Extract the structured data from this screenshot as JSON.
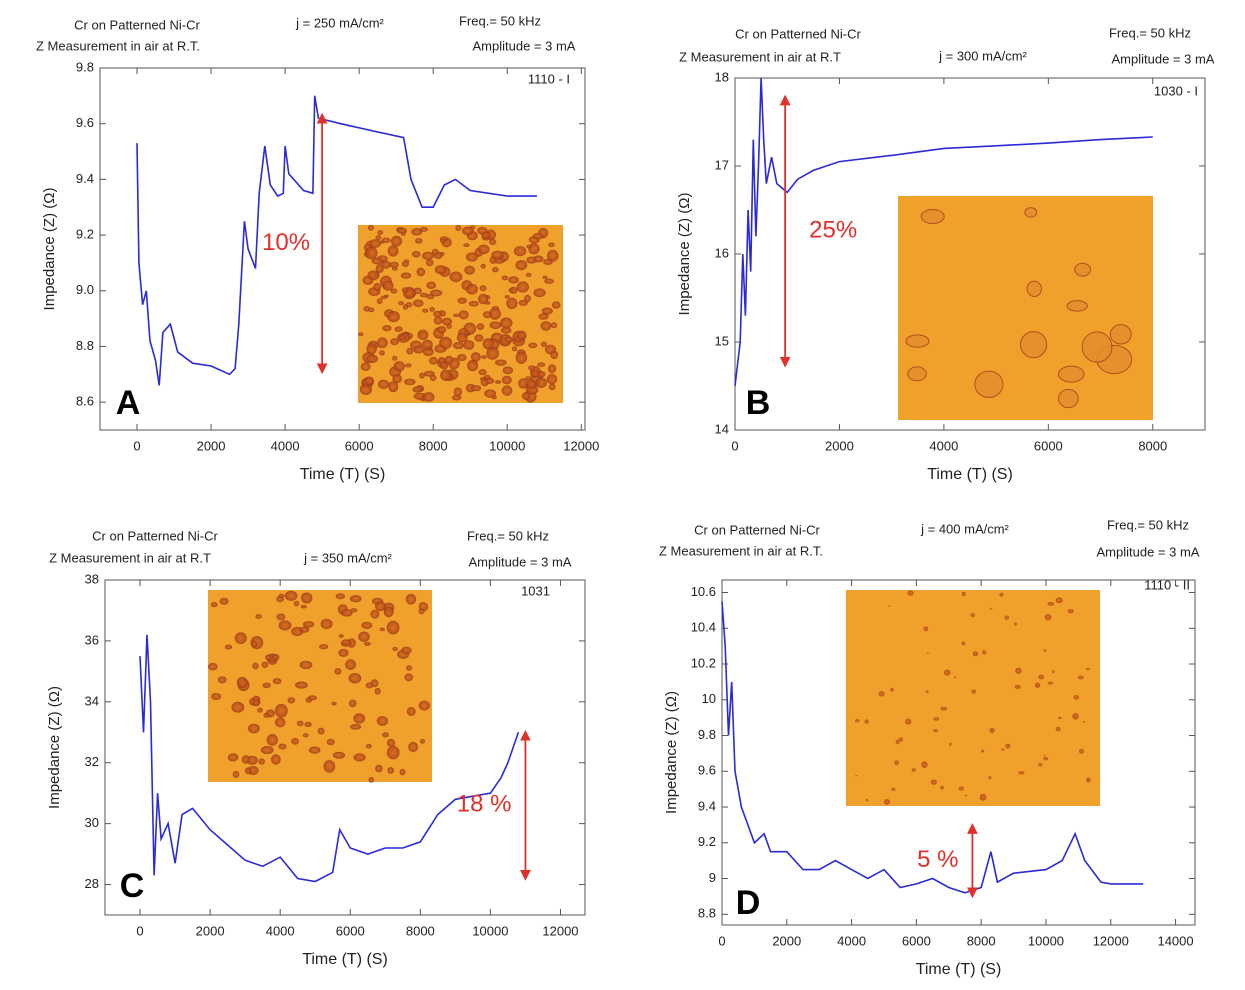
{
  "chart_data": [
    {
      "type": "line",
      "panel": "A",
      "title": [
        "Cr on Patterned Ni-Cr",
        "Z Measurement in air at R.T."
      ],
      "current_density": "j = 250 mA/cm²",
      "frequency": "Freq.= 50 kHz",
      "amplitude": "Amplitude = 3 mA",
      "sample": "1110 - I",
      "xlabel": "Time (T) (S)",
      "ylabel": "Impedance (Z) (Ω)",
      "color": "#2a2ad8",
      "x": [
        0,
        50,
        150,
        250,
        350,
        500,
        600,
        700,
        900,
        1100,
        1500,
        2000,
        2500,
        2650,
        2750,
        2900,
        3000,
        3200,
        3300,
        3450,
        3600,
        3800,
        3950,
        4000,
        4100,
        4500,
        4750,
        4800,
        4900,
        5500,
        6500,
        7200,
        7400,
        7700,
        8000,
        8300,
        8600,
        9000,
        10000,
        10800
      ],
      "values": [
        9.53,
        9.1,
        8.95,
        9.0,
        8.82,
        8.75,
        8.66,
        8.85,
        8.88,
        8.78,
        8.74,
        8.73,
        8.7,
        8.72,
        8.88,
        9.25,
        9.15,
        9.08,
        9.35,
        9.52,
        9.38,
        9.34,
        9.35,
        9.52,
        9.42,
        9.36,
        9.35,
        9.7,
        9.62,
        9.6,
        9.57,
        9.55,
        9.4,
        9.3,
        9.3,
        9.38,
        9.4,
        9.36,
        9.34,
        9.34
      ],
      "xlim": [
        -1000,
        12100
      ],
      "ylim": [
        8.5,
        9.8
      ],
      "xticks": [
        0,
        2000,
        4000,
        6000,
        8000,
        10000,
        12000
      ],
      "yticks": [
        {
          "value": 8.6,
          "label": "8.6"
        },
        {
          "value": 8.8,
          "label": "8.8"
        },
        {
          "value": 9.0,
          "label": "9.0"
        },
        {
          "value": 9.2,
          "label": "9.2"
        },
        {
          "value": 9.4,
          "label": "9.4"
        },
        {
          "value": 9.6,
          "label": "9.6"
        },
        {
          "value": 9.8,
          "label": "9.8"
        }
      ],
      "annotation": {
        "text": "10%",
        "x": 5000,
        "y": [
          9.62,
          8.72
        ]
      }
    },
    {
      "type": "line",
      "panel": "B",
      "title": [
        "Cr on Patterned Ni-Cr",
        "Z Measurement in air at R.T"
      ],
      "current_density": "j = 300 mA/cm²",
      "frequency": "Freq.= 50 kHz",
      "amplitude": "Amplitude = 3 mA",
      "sample": "1030 - I",
      "xlabel": "Time (T) (S)",
      "ylabel": "Impedance (Z) (Ω)",
      "color": "#2a2ad8",
      "x": [
        0,
        100,
        150,
        200,
        250,
        300,
        350,
        400,
        450,
        500,
        550,
        600,
        700,
        800,
        900,
        1000,
        1200,
        1500,
        2000,
        3000,
        4000,
        5000,
        6000,
        7000,
        8000
      ],
      "values": [
        14.5,
        15.0,
        16.0,
        15.3,
        16.5,
        15.8,
        17.3,
        16.2,
        17.0,
        18.0,
        17.3,
        16.8,
        17.1,
        16.8,
        16.75,
        16.7,
        16.85,
        16.95,
        17.05,
        17.12,
        17.2,
        17.23,
        17.26,
        17.3,
        17.33
      ],
      "xlim": [
        0,
        9000
      ],
      "ylim": [
        14,
        18
      ],
      "xticks": [
        0,
        2000,
        4000,
        6000,
        8000
      ],
      "yticks": [
        14,
        15,
        16,
        17,
        18
      ],
      "annotation": {
        "text": "25%",
        "x": 960,
        "y": [
          17.75,
          14.77
        ]
      }
    },
    {
      "type": "line",
      "panel": "C",
      "title": [
        "Cr on Patterned Ni-Cr",
        "Z Measurement in air at R.T"
      ],
      "current_density": "j = 350 mA/cm²",
      "frequency": "Freq.= 50 kHz",
      "amplitude": "Amplitude = 3 mA",
      "sample": "1031",
      "xlabel": "Time (T) (S)",
      "ylabel": "Impedance (Z) (Ω)",
      "color": "#2a2ad8",
      "x": [
        0,
        100,
        200,
        300,
        400,
        500,
        600,
        800,
        1000,
        1200,
        1500,
        2000,
        2500,
        3000,
        3500,
        4000,
        4500,
        5000,
        5500,
        5700,
        6000,
        6500,
        7000,
        7500,
        8000,
        8500,
        9000,
        9500,
        10000,
        10300,
        10500,
        10800
      ],
      "values": [
        35.5,
        33,
        36.2,
        34,
        28.3,
        31,
        29.5,
        30,
        28.7,
        30.3,
        30.5,
        29.8,
        29.3,
        28.8,
        28.6,
        28.9,
        28.2,
        28.1,
        28.4,
        29.8,
        29.2,
        29.0,
        29.2,
        29.2,
        29.4,
        30.3,
        30.8,
        30.9,
        31.0,
        31.5,
        32.0,
        33.0
      ],
      "xlim": [
        -1000,
        12700
      ],
      "ylim": [
        27,
        38
      ],
      "xticks": [
        0,
        2000,
        4000,
        6000,
        8000,
        10000,
        12000
      ],
      "yticks": [
        28,
        30,
        32,
        34,
        36,
        38
      ],
      "annotation": {
        "text": "18 %",
        "x": 11000,
        "y": [
          32.9,
          28.3
        ]
      }
    },
    {
      "type": "line",
      "panel": "D",
      "title": [
        "Cr on Patterned Ni-Cr",
        "Z Measurement in air at R.T."
      ],
      "current_density": "j = 400 mA/cm²",
      "frequency": "Freq.= 50 kHz",
      "amplitude": "Amplitude = 3 mA",
      "sample": "1110 - II",
      "xlabel": "Time (T) (S)",
      "ylabel": "Impedance (Z) (Ω)",
      "color": "#2a2ad8",
      "x": [
        0,
        100,
        200,
        300,
        400,
        500,
        600,
        800,
        1000,
        1300,
        1500,
        2000,
        2500,
        3000,
        3500,
        4000,
        4500,
        5000,
        5500,
        6000,
        6500,
        7000,
        7500,
        8000,
        8300,
        8500,
        9000,
        10000,
        10500,
        10900,
        11200,
        11700,
        12000,
        13000
      ],
      "values": [
        10.55,
        10.3,
        9.8,
        10.1,
        9.6,
        9.5,
        9.4,
        9.3,
        9.2,
        9.25,
        9.15,
        9.15,
        9.05,
        9.05,
        9.1,
        9.05,
        9.0,
        9.05,
        8.95,
        8.97,
        9.0,
        8.95,
        8.92,
        8.95,
        9.15,
        8.98,
        9.03,
        9.05,
        9.1,
        9.25,
        9.1,
        8.98,
        8.97,
        8.97
      ],
      "xlim": [
        0,
        14600
      ],
      "ylim": [
        8.74,
        10.67
      ],
      "xticks": [
        0,
        2000,
        4000,
        6000,
        8000,
        10000,
        12000,
        14000
      ],
      "yticks": [
        8.8,
        9.0,
        9.2,
        9.4,
        9.6,
        9.8,
        10.0,
        10.2,
        10.4,
        10.6
      ],
      "annotation": {
        "text": "5 %",
        "x": 7730,
        "y": [
          9.28,
          8.92
        ]
      }
    }
  ]
}
